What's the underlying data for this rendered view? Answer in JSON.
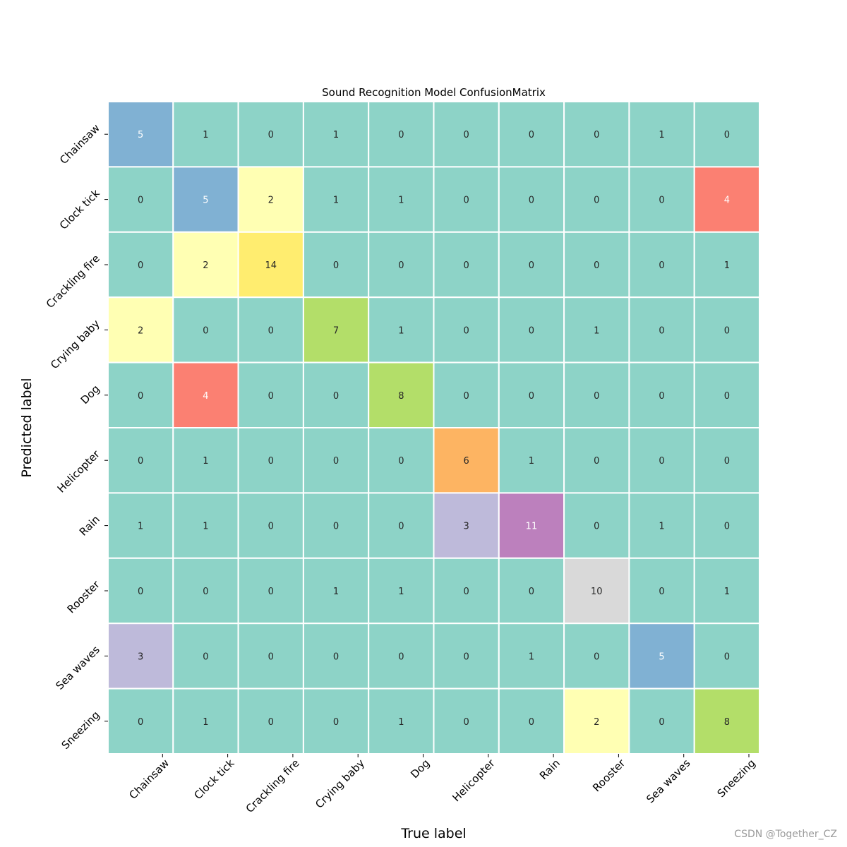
{
  "chart_data": {
    "type": "heatmap",
    "title": "Sound Recognition Model ConfusionMatrix",
    "xlabel": "True label",
    "ylabel": "Predicted label",
    "labels": [
      "Chainsaw",
      "Clock tick",
      "Crackling fire",
      "Crying baby",
      "Dog",
      "Helicopter",
      "Rain",
      "Rooster",
      "Sea waves",
      "Sneezing"
    ],
    "matrix": [
      [
        5,
        1,
        0,
        1,
        0,
        0,
        0,
        0,
        1,
        0
      ],
      [
        0,
        5,
        2,
        1,
        1,
        0,
        0,
        0,
        0,
        4
      ],
      [
        0,
        2,
        14,
        0,
        0,
        0,
        0,
        0,
        0,
        1
      ],
      [
        2,
        0,
        0,
        7,
        1,
        0,
        0,
        1,
        0,
        0
      ],
      [
        0,
        4,
        0,
        0,
        8,
        0,
        0,
        0,
        0,
        0
      ],
      [
        0,
        1,
        0,
        0,
        0,
        6,
        1,
        0,
        0,
        0
      ],
      [
        1,
        1,
        0,
        0,
        0,
        3,
        11,
        0,
        1,
        0
      ],
      [
        0,
        0,
        0,
        1,
        1,
        0,
        0,
        10,
        0,
        1
      ],
      [
        3,
        0,
        0,
        0,
        0,
        0,
        1,
        0,
        5,
        0
      ],
      [
        0,
        1,
        0,
        0,
        1,
        0,
        0,
        2,
        0,
        8
      ]
    ],
    "colormap": "Set3",
    "value_colors": {
      "0": "#8dd3c7",
      "1": "#8dd3c7",
      "2": "#ffffb3",
      "3": "#bebada",
      "4": "#fb8072",
      "5": "#80b1d3",
      "6": "#fdb462",
      "7": "#b3de69",
      "8": "#b3de69",
      "10": "#d9d9d9",
      "11": "#bc80bd",
      "14": "#ffed6f"
    },
    "light_text_values": [
      4,
      5,
      11
    ],
    "gridline_color": "#ffffff",
    "colorbar": false
  },
  "watermark": "CSDN @Together_CZ"
}
